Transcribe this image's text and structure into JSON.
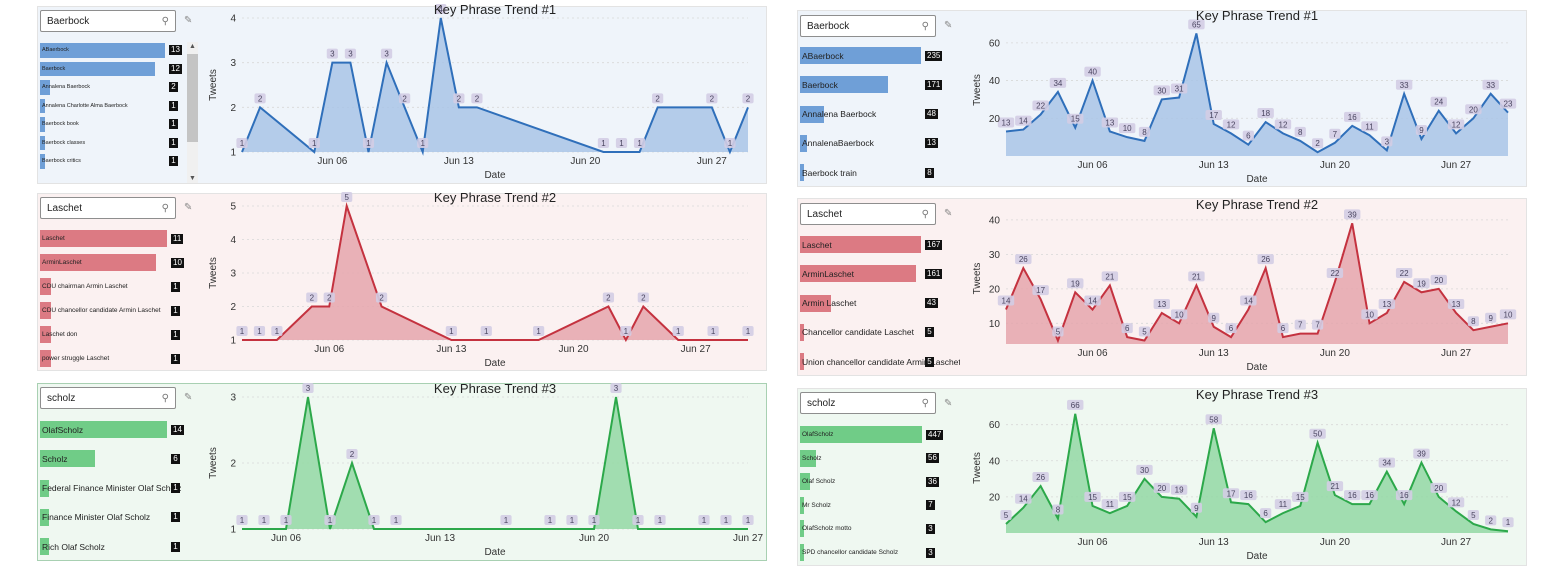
{
  "colors": {
    "blue": "#6f9fd7",
    "blue_line": "#2f6fba",
    "blue_fill": "#a9c4e6",
    "red": "#dc7a83",
    "red_line": "#c4323f",
    "red_fill": "#e5a6ad",
    "green": "#70cc87",
    "green_line": "#2ca84a",
    "green_fill": "#93d8a5",
    "label_bg": "#d3cde4",
    "label_fg": "#4a4560"
  },
  "panels": [
    {
      "id": "left-1",
      "search": {
        "value": "Baerbock",
        "icon": "search-icon"
      },
      "eraser_icon": "eraser-icon",
      "list": [
        {
          "label": "ABaerbock",
          "count": "13",
          "frac": 1.0
        },
        {
          "label": "Baerbock",
          "count": "12",
          "frac": 0.92
        },
        {
          "label": "Annalena Baerbock",
          "count": "2",
          "frac": 0.08
        },
        {
          "label": "Annalena Charlotte Alma Baerbock",
          "count": "1",
          "frac": 0.04
        },
        {
          "label": "Baerbock book",
          "count": "1",
          "frac": 0.04
        },
        {
          "label": "Baerbock classes",
          "count": "1",
          "frac": 0.04
        },
        {
          "label": "Baerbock critics",
          "count": "1",
          "frac": 0.04
        }
      ],
      "chart_data": {
        "type": "area",
        "title": "Key Phrase Trend #1",
        "xlabel": "Date",
        "ylabel": "Tweets",
        "x": [
          "2021-06-01",
          "2021-06-02",
          "2021-06-05",
          "2021-06-06",
          "2021-06-07",
          "2021-06-08",
          "2021-06-09",
          "2021-06-10",
          "2021-06-11",
          "2021-06-12",
          "2021-06-13",
          "2021-06-14",
          "2021-06-21",
          "2021-06-22",
          "2021-06-23",
          "2021-06-24",
          "2021-06-27",
          "2021-06-28",
          "2021-06-29"
        ],
        "y": [
          1,
          2,
          1,
          3,
          3,
          1,
          3,
          2,
          1,
          4,
          2,
          2,
          1,
          1,
          1,
          2,
          2,
          1,
          2
        ],
        "ylim": [
          1,
          4
        ],
        "yticks": [
          1,
          2,
          3,
          4
        ],
        "xticks": [
          "Jun 06",
          "Jun 13",
          "Jun 20",
          "Jun 27"
        ],
        "xrange": [
          "2021-06-01",
          "2021-06-29"
        ],
        "grid": true
      }
    },
    {
      "id": "left-2",
      "search": {
        "value": "Laschet",
        "icon": "search-icon"
      },
      "eraser_icon": "eraser-icon",
      "list": [
        {
          "label": "Laschet",
          "count": "11",
          "frac": 1.0
        },
        {
          "label": "ArminLaschet",
          "count": "10",
          "frac": 0.91
        },
        {
          "label": "CDU chairman Armin Laschet",
          "count": "1",
          "frac": 0.09
        },
        {
          "label": "CDU chancellor candidate Armin Laschet",
          "count": "1",
          "frac": 0.09
        },
        {
          "label": "Laschet don",
          "count": "1",
          "frac": 0.09
        },
        {
          "label": "power struggle Laschet",
          "count": "1",
          "frac": 0.09
        }
      ],
      "chart_data": {
        "type": "area",
        "title": "Key Phrase Trend #2",
        "xlabel": "Date",
        "ylabel": "Tweets",
        "x": [
          "2021-06-01",
          "2021-06-02",
          "2021-06-03",
          "2021-06-05",
          "2021-06-06",
          "2021-06-07",
          "2021-06-09",
          "2021-06-13",
          "2021-06-15",
          "2021-06-18",
          "2021-06-22",
          "2021-06-23",
          "2021-06-24",
          "2021-06-26",
          "2021-06-28",
          "2021-06-30"
        ],
        "y": [
          1,
          1,
          1,
          2,
          2,
          5,
          2,
          1,
          1,
          1,
          2,
          1,
          2,
          1,
          1,
          1
        ],
        "ylim": [
          1,
          5
        ],
        "yticks": [
          1,
          2,
          3,
          4,
          5
        ],
        "xticks": [
          "Jun 06",
          "Jun 13",
          "Jun 20",
          "Jun 27"
        ],
        "xrange": [
          "2021-06-01",
          "2021-06-30"
        ],
        "grid": true
      }
    },
    {
      "id": "left-3",
      "search": {
        "value": "scholz",
        "icon": "search-icon"
      },
      "eraser_icon": "eraser-icon",
      "list": [
        {
          "label": "OlafScholz",
          "count": "14",
          "frac": 1.0
        },
        {
          "label": "Scholz",
          "count": "6",
          "frac": 0.43
        },
        {
          "label": "Federal Finance Minister Olaf Scholz",
          "count": "1",
          "frac": 0.07
        },
        {
          "label": "Finance Minister Olaf Scholz",
          "count": "1",
          "frac": 0.07
        },
        {
          "label": "Rich Olaf Scholz",
          "count": "1",
          "frac": 0.07
        }
      ],
      "chart_data": {
        "type": "area",
        "title": "Key Phrase Trend #3",
        "xlabel": "Date",
        "ylabel": "Tweets",
        "x": [
          "2021-06-04",
          "2021-06-05",
          "2021-06-06",
          "2021-06-07",
          "2021-06-08",
          "2021-06-09",
          "2021-06-10",
          "2021-06-11",
          "2021-06-16",
          "2021-06-18",
          "2021-06-19",
          "2021-06-20",
          "2021-06-21",
          "2021-06-22",
          "2021-06-23",
          "2021-06-25",
          "2021-06-26",
          "2021-06-27"
        ],
        "y": [
          1,
          1,
          1,
          3,
          1,
          2,
          1,
          1,
          1,
          1,
          1,
          1,
          3,
          1,
          1,
          1,
          1,
          1
        ],
        "ylim": [
          1,
          3
        ],
        "yticks": [
          1,
          2,
          3
        ],
        "xticks": [
          "Jun 06",
          "Jun 13",
          "Jun 20",
          "Jun 27"
        ],
        "xrange": [
          "2021-06-04",
          "2021-06-27"
        ],
        "grid": true
      }
    },
    {
      "id": "right-1",
      "search": {
        "value": "Baerbock",
        "icon": "search-icon"
      },
      "eraser_icon": "eraser-icon",
      "list": [
        {
          "label": "ABaerbock",
          "count": "235",
          "frac": 1.0
        },
        {
          "label": "Baerbock",
          "count": "171",
          "frac": 0.73
        },
        {
          "label": "Annalena Baerbock",
          "count": "48",
          "frac": 0.2
        },
        {
          "label": "AnnalenaBaerbock",
          "count": "13",
          "frac": 0.06
        },
        {
          "label": "Baerbock train",
          "count": "8",
          "frac": 0.03
        }
      ],
      "chart_data": {
        "type": "area",
        "title": "Key Phrase Trend #1",
        "xlabel": "Date",
        "ylabel": "Tweets",
        "x": [
          "2021-06-01",
          "2021-06-02",
          "2021-06-03",
          "2021-06-04",
          "2021-06-05",
          "2021-06-06",
          "2021-06-07",
          "2021-06-08",
          "2021-06-09",
          "2021-06-10",
          "2021-06-11",
          "2021-06-12",
          "2021-06-13",
          "2021-06-14",
          "2021-06-15",
          "2021-06-16",
          "2021-06-17",
          "2021-06-18",
          "2021-06-19",
          "2021-06-20",
          "2021-06-21",
          "2021-06-22",
          "2021-06-23",
          "2021-06-24",
          "2021-06-25",
          "2021-06-26",
          "2021-06-27",
          "2021-06-28",
          "2021-06-29",
          "2021-06-30"
        ],
        "y": [
          13,
          14,
          22,
          34,
          15,
          40,
          13,
          10,
          8,
          30,
          31,
          65,
          17,
          12,
          6,
          18,
          12,
          8,
          2,
          7,
          16,
          11,
          3,
          33,
          9,
          24,
          12,
          20,
          33,
          23
        ],
        "ylim": [
          0,
          70
        ],
        "yticks": [
          20,
          40,
          60
        ],
        "xticks": [
          "Jun 06",
          "Jun 13",
          "Jun 20",
          "Jun 27"
        ],
        "xrange": [
          "2021-06-01",
          "2021-06-30"
        ],
        "grid": true
      }
    },
    {
      "id": "right-2",
      "search": {
        "value": "Laschet",
        "icon": "search-icon"
      },
      "eraser_icon": "eraser-icon",
      "list": [
        {
          "label": "Laschet",
          "count": "167",
          "frac": 1.0
        },
        {
          "label": "ArminLaschet",
          "count": "161",
          "frac": 0.96
        },
        {
          "label": "Armin Laschet",
          "count": "43",
          "frac": 0.26
        },
        {
          "label": "Chancellor candidate Laschet",
          "count": "5",
          "frac": 0.03
        },
        {
          "label": "Union chancellor candidate Armin Laschet",
          "count": "5",
          "frac": 0.03
        }
      ],
      "chart_data": {
        "type": "area",
        "title": "Key Phrase Trend #2",
        "xlabel": "Date",
        "ylabel": "Tweets",
        "x": [
          "2021-06-01",
          "2021-06-02",
          "2021-06-03",
          "2021-06-04",
          "2021-06-05",
          "2021-06-06",
          "2021-06-07",
          "2021-06-08",
          "2021-06-09",
          "2021-06-10",
          "2021-06-11",
          "2021-06-12",
          "2021-06-13",
          "2021-06-14",
          "2021-06-15",
          "2021-06-16",
          "2021-06-17",
          "2021-06-18",
          "2021-06-19",
          "2021-06-20",
          "2021-06-21",
          "2021-06-22",
          "2021-06-23",
          "2021-06-24",
          "2021-06-25",
          "2021-06-26",
          "2021-06-27",
          "2021-06-28",
          "2021-06-29",
          "2021-06-30"
        ],
        "y": [
          14,
          26,
          17,
          5,
          19,
          14,
          21,
          6,
          5,
          13,
          10,
          21,
          9,
          6,
          14,
          26,
          6,
          7,
          7,
          22,
          39,
          10,
          13,
          22,
          19,
          20,
          13,
          8,
          9,
          10
        ],
        "ylim": [
          4,
          42
        ],
        "yticks": [
          10,
          20,
          30,
          40
        ],
        "xticks": [
          "Jun 06",
          "Jun 13",
          "Jun 20",
          "Jun 27"
        ],
        "xrange": [
          "2021-06-01",
          "2021-06-30"
        ],
        "grid": true
      }
    },
    {
      "id": "right-3",
      "search": {
        "value": "scholz",
        "icon": "search-icon"
      },
      "eraser_icon": "eraser-icon",
      "list": [
        {
          "label": "OlafScholz",
          "count": "447",
          "frac": 1.0
        },
        {
          "label": "Scholz",
          "count": "56",
          "frac": 0.13
        },
        {
          "label": "Olaf Scholz",
          "count": "36",
          "frac": 0.08
        },
        {
          "label": "Mr Scholz",
          "count": "7",
          "frac": 0.02
        },
        {
          "label": "OlafScholz motto",
          "count": "3",
          "frac": 0.01
        },
        {
          "label": "SPD chancellor candidate Scholz",
          "count": "3",
          "frac": 0.01
        }
      ],
      "chart_data": {
        "type": "area",
        "title": "Key Phrase Trend #3",
        "xlabel": "Date",
        "ylabel": "Tweets",
        "x": [
          "2021-06-01",
          "2021-06-02",
          "2021-06-03",
          "2021-06-04",
          "2021-06-05",
          "2021-06-06",
          "2021-06-07",
          "2021-06-08",
          "2021-06-09",
          "2021-06-10",
          "2021-06-11",
          "2021-06-12",
          "2021-06-13",
          "2021-06-14",
          "2021-06-15",
          "2021-06-16",
          "2021-06-17",
          "2021-06-18",
          "2021-06-19",
          "2021-06-20",
          "2021-06-21",
          "2021-06-22",
          "2021-06-23",
          "2021-06-24",
          "2021-06-25",
          "2021-06-26",
          "2021-06-27",
          "2021-06-28",
          "2021-06-29",
          "2021-06-30"
        ],
        "y": [
          5,
          14,
          26,
          8,
          66,
          15,
          11,
          15,
          30,
          20,
          19,
          9,
          58,
          17,
          16,
          6,
          11,
          15,
          50,
          21,
          16,
          16,
          34,
          16,
          39,
          20,
          12,
          5,
          2,
          1
        ],
        "ylim": [
          0,
          72
        ],
        "yticks": [
          20,
          40,
          60
        ],
        "xticks": [
          "Jun 06",
          "Jun 13",
          "Jun 20",
          "Jun 27"
        ],
        "xrange": [
          "2021-06-01",
          "2021-06-30"
        ],
        "grid": true
      }
    }
  ]
}
